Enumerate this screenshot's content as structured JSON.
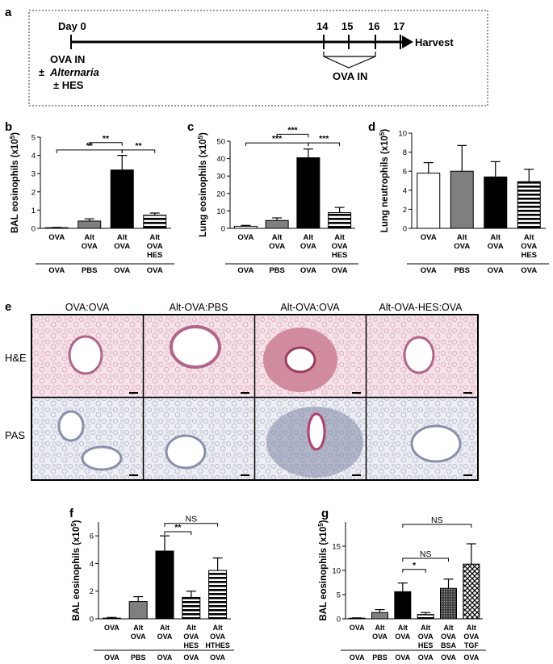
{
  "panels": {
    "a": "a",
    "b": "b",
    "c": "c",
    "d": "d",
    "e": "e",
    "f": "f",
    "g": "g"
  },
  "timeline": {
    "day0": "Day 0",
    "days": [
      "14",
      "15",
      "16",
      "17"
    ],
    "harvest": "Harvest",
    "left_notes": [
      "OVA IN",
      "±",
      "Alternaria",
      "± HES"
    ],
    "ova_in": "OVA IN"
  },
  "chart_data": [
    {
      "id": "b",
      "type": "bar",
      "ylabel": "BAL eosinophils (x10",
      "ylabel_sup": "5",
      "ylabel_tail": ")",
      "ylim": [
        0,
        5
      ],
      "yticks": [
        0,
        1,
        2,
        3,
        4,
        5
      ],
      "categories": [
        [
          "OVA"
        ],
        [
          "Alt",
          "OVA"
        ],
        [
          "Alt",
          "OVA"
        ],
        [
          "Alt",
          "OVA",
          "HES"
        ]
      ],
      "challenge": [
        "OVA",
        "PBS",
        "OVA",
        "OVA"
      ],
      "values": [
        0.02,
        0.4,
        3.2,
        0.72
      ],
      "errors": [
        0.03,
        0.12,
        0.8,
        0.12
      ],
      "fills": [
        "white",
        "gray",
        "black",
        "hstripe"
      ],
      "sig": [
        {
          "from": 1,
          "to": 2,
          "label": "**",
          "level": 4.7
        },
        {
          "from": 0,
          "to": 2,
          "label": "**",
          "level": 4.3
        },
        {
          "from": 2,
          "to": 3,
          "label": "**",
          "level": 4.3
        }
      ]
    },
    {
      "id": "c",
      "type": "bar",
      "ylabel": "Lung eosinophils (x10",
      "ylabel_sup": "5",
      "ylabel_tail": ")",
      "ylim": [
        0,
        50
      ],
      "yticks": [
        0,
        10,
        20,
        30,
        40,
        50
      ],
      "categories": [
        [
          "OVA"
        ],
        [
          "Alt",
          "OVA"
        ],
        [
          "Alt",
          "OVA"
        ],
        [
          "Alt",
          "OVA",
          "HES"
        ]
      ],
      "challenge": [
        "OVA",
        "PBS",
        "OVA",
        "OVA"
      ],
      "values": [
        1.2,
        4.5,
        40.5,
        9.0
      ],
      "errors": [
        0.5,
        1.5,
        5.0,
        3.0
      ],
      "fills": [
        "white",
        "gray",
        "black",
        "hstripe"
      ],
      "sig": [
        {
          "from": 1,
          "to": 2,
          "label": "***",
          "level": 54
        },
        {
          "from": 0,
          "to": 2,
          "label": "***",
          "level": 49
        },
        {
          "from": 2,
          "to": 3,
          "label": "***",
          "level": 49
        }
      ]
    },
    {
      "id": "d",
      "type": "bar",
      "ylabel": "Lung neutrophils (x10",
      "ylabel_sup": "5",
      "ylabel_tail": ")",
      "ylim": [
        0,
        10
      ],
      "yticks": [
        0,
        2,
        4,
        6,
        8,
        10
      ],
      "categories": [
        [
          "OVA"
        ],
        [
          "Alt",
          "OVA"
        ],
        [
          "Alt",
          "OVA"
        ],
        [
          "Alt",
          "OVA",
          "HES"
        ]
      ],
      "challenge": [
        "OVA",
        "PBS",
        "OVA",
        "OVA"
      ],
      "values": [
        5.8,
        6.0,
        5.4,
        4.9
      ],
      "errors": [
        1.1,
        2.7,
        1.6,
        1.3
      ],
      "fills": [
        "white",
        "gray",
        "black",
        "hstripe"
      ],
      "sig": []
    },
    {
      "id": "f",
      "type": "bar",
      "ylabel": "BAL eosinophils (x10",
      "ylabel_sup": "5",
      "ylabel_tail": ")",
      "ylim": [
        0,
        7
      ],
      "yticks": [
        0,
        2,
        4,
        6
      ],
      "categories": [
        [
          "OVA"
        ],
        [
          "Alt",
          "OVA"
        ],
        [
          "Alt",
          "OVA"
        ],
        [
          "Alt",
          "OVA",
          "HES"
        ],
        [
          "Alt",
          "OVA",
          "HTHES"
        ]
      ],
      "challenge": [
        "OVA",
        "PBS",
        "OVA",
        "OVA",
        "OVA"
      ],
      "values": [
        0.05,
        1.25,
        4.9,
        1.55,
        3.5
      ],
      "errors": [
        0.05,
        0.35,
        1.1,
        0.45,
        0.9
      ],
      "fills": [
        "white",
        "gray",
        "black",
        "hstripe",
        "hstripe"
      ],
      "sig": [
        {
          "from": 2,
          "to": 3,
          "label": "**",
          "level": 6.3
        },
        {
          "from": 2,
          "to": 4,
          "label": "NS",
          "level": 6.9
        }
      ]
    },
    {
      "id": "g",
      "type": "bar",
      "ylabel": "BAL eosinophils (x10",
      "ylabel_sup": "5",
      "ylabel_tail": ")",
      "ylim": [
        0,
        20
      ],
      "yticks": [
        0,
        5,
        10,
        15
      ],
      "categories": [
        [
          "OVA"
        ],
        [
          "Alt",
          "OVA"
        ],
        [
          "Alt",
          "OVA"
        ],
        [
          "Alt",
          "OVA",
          "HES"
        ],
        [
          "Alt",
          "OVA",
          "BSA"
        ],
        [
          "Alt",
          "OVA",
          "TGF"
        ]
      ],
      "challenge": [
        "OVA",
        "PBS",
        "OVA",
        "OVA",
        "OVA",
        "OVA"
      ],
      "values": [
        0.1,
        1.3,
        5.6,
        0.9,
        6.3,
        11.3
      ],
      "errors": [
        0.1,
        0.6,
        1.8,
        0.4,
        1.9,
        4.2
      ],
      "fills": [
        "white",
        "gray",
        "black",
        "hstripe",
        "dots",
        "checker"
      ],
      "sig": [
        {
          "from": 2,
          "to": 3,
          "label": "*",
          "level": 10.2
        },
        {
          "from": 2,
          "to": 4,
          "label": "NS",
          "level": 12.5
        },
        {
          "from": 2,
          "to": 5,
          "label": "NS",
          "level": 19.5
        }
      ]
    }
  ],
  "histology": {
    "columns": [
      "OVA:OVA",
      "Alt-OVA:PBS",
      "Alt-OVA:OVA",
      "Alt-OVA-HES:OVA"
    ],
    "rows": [
      "H&E",
      "PAS"
    ]
  }
}
